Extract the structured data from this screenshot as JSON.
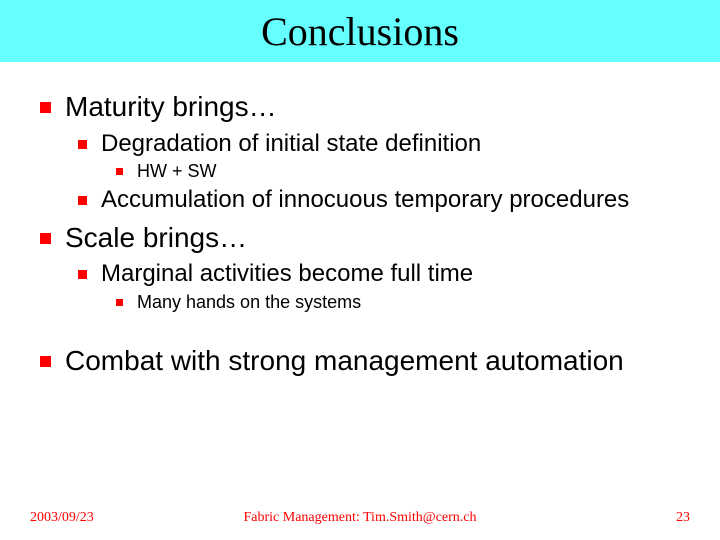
{
  "title": "Conclusions",
  "colors": {
    "title_bg": "#66ffff",
    "bullet": "#ff0000",
    "footer_text": "#ff0000",
    "body_text": "#000000",
    "background": "#ffffff"
  },
  "bullets": {
    "l1_a": "Maturity brings…",
    "l2_a": "Degradation of initial state definition",
    "l3_a": "HW + SW",
    "l2_b": "Accumulation of innocuous temporary procedures",
    "l1_b": "Scale brings…",
    "l2_c": "Marginal activities become full time",
    "l3_b": "Many hands on the systems",
    "l1_c": "Combat with strong management automation"
  },
  "footer": {
    "date": "2003/09/23",
    "center": "Fabric Management: Tim.Smith@cern.ch",
    "page": "23"
  }
}
